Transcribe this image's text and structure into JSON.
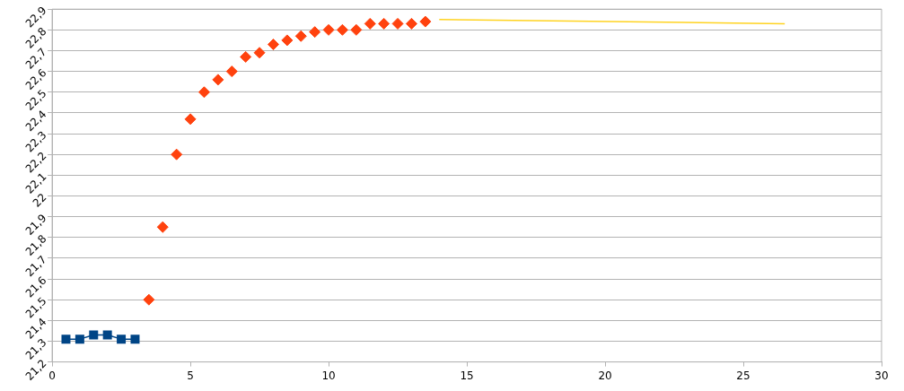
{
  "chart_data": {
    "type": "scatter",
    "xlim": [
      0,
      30
    ],
    "xticks": [
      0,
      5,
      10,
      15,
      20,
      25,
      30
    ],
    "ylim": [
      21.2,
      22.9
    ],
    "yticks": [
      {
        "value": 21.2,
        "label": "21,2"
      },
      {
        "value": 21.3,
        "label": "21,3"
      },
      {
        "value": 21.4,
        "label": "21,4"
      },
      {
        "value": 21.5,
        "label": "21,5"
      },
      {
        "value": 21.6,
        "label": "21,6"
      },
      {
        "value": 21.7,
        "label": "21,7"
      },
      {
        "value": 21.8,
        "label": "21,8"
      },
      {
        "value": 21.9,
        "label": "21,9"
      },
      {
        "value": 22,
        "label": "22"
      },
      {
        "value": 22.1,
        "label": "22,1"
      },
      {
        "value": 22.2,
        "label": "22,2"
      },
      {
        "value": 22.3,
        "label": "22,3"
      },
      {
        "value": 22.4,
        "label": "22,4"
      },
      {
        "value": 22.5,
        "label": "22,5"
      },
      {
        "value": 22.6,
        "label": "22,6"
      },
      {
        "value": 22.7,
        "label": "22,7"
      },
      {
        "value": 22.8,
        "label": "22,8"
      },
      {
        "value": 22.9,
        "label": "22,9"
      }
    ],
    "grid": "y",
    "legend": false,
    "series": [
      {
        "type": "line",
        "marker": "square",
        "line_style": "solid",
        "color": "#004586",
        "x": [
          0.5,
          1,
          1.5,
          2,
          2.5,
          3
        ],
        "values": [
          21.31,
          21.31,
          21.33,
          21.33,
          21.31,
          21.31
        ]
      },
      {
        "type": "scatter",
        "marker": "diamond",
        "color": "#ff420e",
        "x": [
          3.5,
          4,
          4.5,
          5,
          5.5,
          6,
          6.5,
          7,
          7.5,
          8,
          8.5,
          9,
          9.5,
          10,
          10.5,
          11,
          11.5,
          12,
          12.5,
          13,
          13.5
        ],
        "values": [
          21.5,
          21.85,
          22.2,
          22.37,
          22.5,
          22.56,
          22.6,
          22.67,
          22.69,
          22.73,
          22.75,
          22.77,
          22.79,
          22.8,
          22.8,
          22.8,
          22.83,
          22.83,
          22.83,
          22.83,
          22.84
        ]
      },
      {
        "type": "line",
        "marker": "none",
        "line_style": "solid",
        "color": "#ffd320",
        "x": [
          14,
          26.5
        ],
        "values": [
          22.85,
          22.83
        ]
      }
    ]
  }
}
